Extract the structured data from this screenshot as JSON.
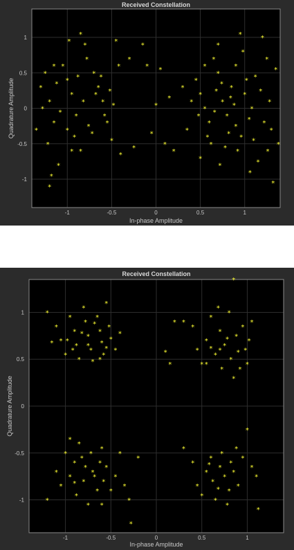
{
  "chart_data": [
    {
      "type": "scatter",
      "title": "Received Constellation",
      "xlabel": "In-phase Amplitude",
      "ylabel": "Quadrature Amplitude",
      "xlim": [
        -1.4,
        1.4
      ],
      "ylim": [
        -1.4,
        1.4
      ],
      "xticks": [
        -1,
        -0.5,
        0,
        0.5,
        1
      ],
      "yticks": [
        -1,
        -0.5,
        0,
        0.5,
        1
      ],
      "xtick_labels": [
        "-1",
        "-0.5",
        "0",
        "0.5",
        "1"
      ],
      "ytick_labels": [
        "-1",
        "-0.5",
        "0",
        "0.5",
        "1"
      ],
      "grid": true,
      "background": "#000000",
      "figure_color": "#2b2b2b",
      "marker": "*",
      "marker_color": "#ffff33",
      "series": [
        {
          "points": [
            [
              -1.3,
              0.3
            ],
            [
              -1.25,
              0.5
            ],
            [
              -1.2,
              0.1
            ],
            [
              -1.15,
              -0.2
            ],
            [
              -1.22,
              -0.5
            ],
            [
              -1.1,
              -0.8
            ],
            [
              -1.18,
              -0.95
            ],
            [
              -1.2,
              -1.1
            ],
            [
              -1.05,
              0.6
            ],
            [
              -1.0,
              0.4
            ],
            [
              -0.95,
              0.2
            ],
            [
              -0.9,
              -0.1
            ],
            [
              -0.92,
              -0.4
            ],
            [
              -0.85,
              -0.6
            ],
            [
              -0.8,
              0.9
            ],
            [
              -0.78,
              0.7
            ],
            [
              -0.7,
              0.5
            ],
            [
              -0.65,
              0.3
            ],
            [
              -0.6,
              0.1
            ],
            [
              -0.55,
              -0.2
            ],
            [
              -0.5,
              -0.45
            ],
            [
              -0.45,
              0.95
            ],
            [
              -0.42,
              0.6
            ],
            [
              -0.4,
              -0.65
            ],
            [
              -1.35,
              -0.3
            ],
            [
              -1.28,
              0.0
            ],
            [
              -1.12,
              0.35
            ],
            [
              -1.08,
              -0.05
            ],
            [
              -1.0,
              -0.3
            ],
            [
              -0.98,
              0.95
            ],
            [
              -0.88,
              0.45
            ],
            [
              -0.82,
              0.1
            ],
            [
              -0.76,
              -0.25
            ],
            [
              -0.72,
              -0.35
            ],
            [
              -0.68,
              0.2
            ],
            [
              -0.62,
              0.45
            ],
            [
              -0.58,
              -0.1
            ],
            [
              -0.52,
              0.25
            ],
            [
              -0.48,
              0.05
            ],
            [
              -0.85,
              1.05
            ],
            [
              -1.15,
              0.6
            ],
            [
              -0.95,
              -0.6
            ],
            [
              -0.3,
              0.7
            ],
            [
              -0.25,
              -0.55
            ],
            [
              -0.15,
              0.9
            ],
            [
              -0.1,
              0.6
            ],
            [
              -0.05,
              -0.35
            ],
            [
              0.0,
              0.05
            ],
            [
              0.05,
              0.55
            ],
            [
              0.1,
              -0.5
            ],
            [
              0.15,
              0.15
            ],
            [
              0.2,
              -0.6
            ],
            [
              0.3,
              0.3
            ],
            [
              0.35,
              -0.3
            ],
            [
              0.45,
              0.4
            ],
            [
              0.5,
              0.2
            ],
            [
              0.55,
              0.0
            ],
            [
              0.6,
              -0.2
            ],
            [
              0.62,
              -0.5
            ],
            [
              0.65,
              0.7
            ],
            [
              0.7,
              0.5
            ],
            [
              0.72,
              -0.8
            ],
            [
              0.75,
              0.1
            ],
            [
              0.8,
              -0.1
            ],
            [
              0.82,
              -0.35
            ],
            [
              0.85,
              0.3
            ],
            [
              0.9,
              0.6
            ],
            [
              0.92,
              -0.6
            ],
            [
              0.95,
              1.05
            ],
            [
              0.98,
              0.8
            ],
            [
              1.0,
              0.2
            ],
            [
              1.05,
              -0.15
            ],
            [
              1.1,
              -0.45
            ],
            [
              1.12,
              0.45
            ],
            [
              1.15,
              -0.75
            ],
            [
              1.2,
              1.0
            ],
            [
              1.25,
              0.7
            ],
            [
              1.28,
              0.1
            ],
            [
              1.3,
              -0.3
            ],
            [
              1.32,
              -1.05
            ],
            [
              1.35,
              0.55
            ],
            [
              1.38,
              -0.5
            ],
            [
              0.5,
              -0.7
            ],
            [
              0.55,
              0.6
            ],
            [
              0.68,
              0.25
            ],
            [
              0.78,
              -0.55
            ],
            [
              0.88,
              0.05
            ],
            [
              0.9,
              -0.25
            ],
            [
              1.02,
              0.4
            ],
            [
              1.08,
              0.0
            ],
            [
              1.18,
              0.25
            ],
            [
              1.22,
              -0.2
            ],
            [
              0.58,
              -0.4
            ],
            [
              0.66,
              -0.05
            ],
            [
              0.74,
              0.35
            ],
            [
              0.84,
              0.15
            ],
            [
              0.96,
              -0.4
            ],
            [
              1.06,
              -0.9
            ],
            [
              0.48,
              -0.1
            ],
            [
              1.26,
              -0.6
            ],
            [
              0.7,
              0.9
            ],
            [
              0.4,
              0.1
            ]
          ]
        }
      ]
    },
    {
      "type": "scatter",
      "title": "Received Constellation",
      "xlabel": "In-phase Amplitude",
      "ylabel": "Quadrature Amplitude",
      "xlim": [
        -1.4,
        1.4
      ],
      "ylim": [
        -1.35,
        1.35
      ],
      "xticks": [
        -1,
        -0.5,
        0,
        0.5,
        1
      ],
      "yticks": [
        -1,
        -0.5,
        0,
        0.5,
        1
      ],
      "xtick_labels": [
        "-1",
        "-0.5",
        "0",
        "0.5",
        "1"
      ],
      "ytick_labels": [
        "-1",
        "-0.5",
        "0",
        "0.5",
        "1"
      ],
      "grid": true,
      "background": "#000000",
      "figure_color": "#2b2b2b",
      "marker": "*",
      "marker_color": "#ffff33",
      "series": [
        {
          "points": [
            [
              -1.2,
              1.0
            ],
            [
              -1.1,
              0.85
            ],
            [
              -1.05,
              0.7
            ],
            [
              -1.0,
              0.55
            ],
            [
              -0.95,
              0.95
            ],
            [
              -0.9,
              0.8
            ],
            [
              -0.88,
              0.65
            ],
            [
              -0.85,
              0.5
            ],
            [
              -0.8,
              1.05
            ],
            [
              -0.78,
              0.9
            ],
            [
              -0.75,
              0.75
            ],
            [
              -0.72,
              0.6
            ],
            [
              -0.7,
              0.48
            ],
            [
              -0.65,
              0.95
            ],
            [
              -0.62,
              0.8
            ],
            [
              -0.6,
              0.68
            ],
            [
              -0.58,
              0.55
            ],
            [
              -0.55,
              1.1
            ],
            [
              -0.52,
              0.85
            ],
            [
              -0.5,
              0.72
            ],
            [
              -0.45,
              0.6
            ],
            [
              -0.4,
              0.78
            ],
            [
              -0.98,
              0.7
            ],
            [
              -0.68,
              0.88
            ],
            [
              -0.82,
              0.78
            ],
            [
              -0.62,
              0.5
            ],
            [
              -0.92,
              0.6
            ],
            [
              -0.75,
              0.65
            ],
            [
              -0.55,
              0.62
            ],
            [
              -1.15,
              0.68
            ],
            [
              0.4,
              0.85
            ],
            [
              0.45,
              0.6
            ],
            [
              0.5,
              0.45
            ],
            [
              0.55,
              0.7
            ],
            [
              0.6,
              0.95
            ],
            [
              0.65,
              0.55
            ],
            [
              0.7,
              0.8
            ],
            [
              0.72,
              0.4
            ],
            [
              0.75,
              0.65
            ],
            [
              0.8,
              1.0
            ],
            [
              0.82,
              0.5
            ],
            [
              0.85,
              0.3
            ],
            [
              0.88,
              0.75
            ],
            [
              0.9,
              0.58
            ],
            [
              0.95,
              0.85
            ],
            [
              1.0,
              0.45
            ],
            [
              1.02,
              0.7
            ],
            [
              1.05,
              0.9
            ],
            [
              0.68,
              1.05
            ],
            [
              0.78,
              0.72
            ],
            [
              0.6,
              0.62
            ],
            [
              0.92,
              0.4
            ],
            [
              0.85,
              1.35
            ],
            [
              0.3,
              0.9
            ],
            [
              0.2,
              0.9
            ],
            [
              0.1,
              0.58
            ],
            [
              0.15,
              0.45
            ],
            [
              0.55,
              0.45
            ],
            [
              0.7,
              0.6
            ],
            [
              0.98,
              0.6
            ],
            [
              -1.2,
              -1.0
            ],
            [
              -1.1,
              -0.7
            ],
            [
              -1.05,
              -0.85
            ],
            [
              -1.0,
              -0.5
            ],
            [
              -0.95,
              -0.75
            ],
            [
              -0.9,
              -0.6
            ],
            [
              -0.88,
              -0.95
            ],
            [
              -0.85,
              -0.4
            ],
            [
              -0.8,
              -0.8
            ],
            [
              -0.78,
              -0.65
            ],
            [
              -0.75,
              -1.05
            ],
            [
              -0.72,
              -0.5
            ],
            [
              -0.7,
              -0.7
            ],
            [
              -0.65,
              -0.9
            ],
            [
              -0.62,
              -0.6
            ],
            [
              -0.6,
              -0.45
            ],
            [
              -0.58,
              -0.8
            ],
            [
              -0.55,
              -0.65
            ],
            [
              -0.5,
              -0.9
            ],
            [
              -0.45,
              -0.75
            ],
            [
              -0.4,
              -0.5
            ],
            [
              -0.35,
              -0.85
            ],
            [
              -0.3,
              -1.0
            ],
            [
              -0.28,
              -1.25
            ],
            [
              -0.2,
              -0.55
            ],
            [
              -0.95,
              -0.35
            ],
            [
              -0.68,
              -0.75
            ],
            [
              -0.82,
              -0.55
            ],
            [
              -0.6,
              -1.05
            ],
            [
              -0.9,
              -0.82
            ],
            [
              0.4,
              -0.6
            ],
            [
              0.45,
              -0.85
            ],
            [
              0.5,
              -0.95
            ],
            [
              0.55,
              -0.7
            ],
            [
              0.6,
              -0.55
            ],
            [
              0.62,
              -0.8
            ],
            [
              0.65,
              -1.0
            ],
            [
              0.7,
              -0.65
            ],
            [
              0.72,
              -0.5
            ],
            [
              0.75,
              -0.75
            ],
            [
              0.8,
              -0.9
            ],
            [
              0.82,
              -0.6
            ],
            [
              0.85,
              -0.7
            ],
            [
              0.88,
              -0.45
            ],
            [
              0.9,
              -0.85
            ],
            [
              0.95,
              -0.55
            ],
            [
              1.0,
              -0.25
            ],
            [
              1.05,
              -0.65
            ],
            [
              1.1,
              -0.75
            ],
            [
              1.12,
              -1.1
            ],
            [
              0.3,
              -0.45
            ],
            [
              0.78,
              -1.05
            ],
            [
              0.68,
              -0.88
            ],
            [
              0.58,
              -0.62
            ]
          ]
        }
      ]
    }
  ]
}
